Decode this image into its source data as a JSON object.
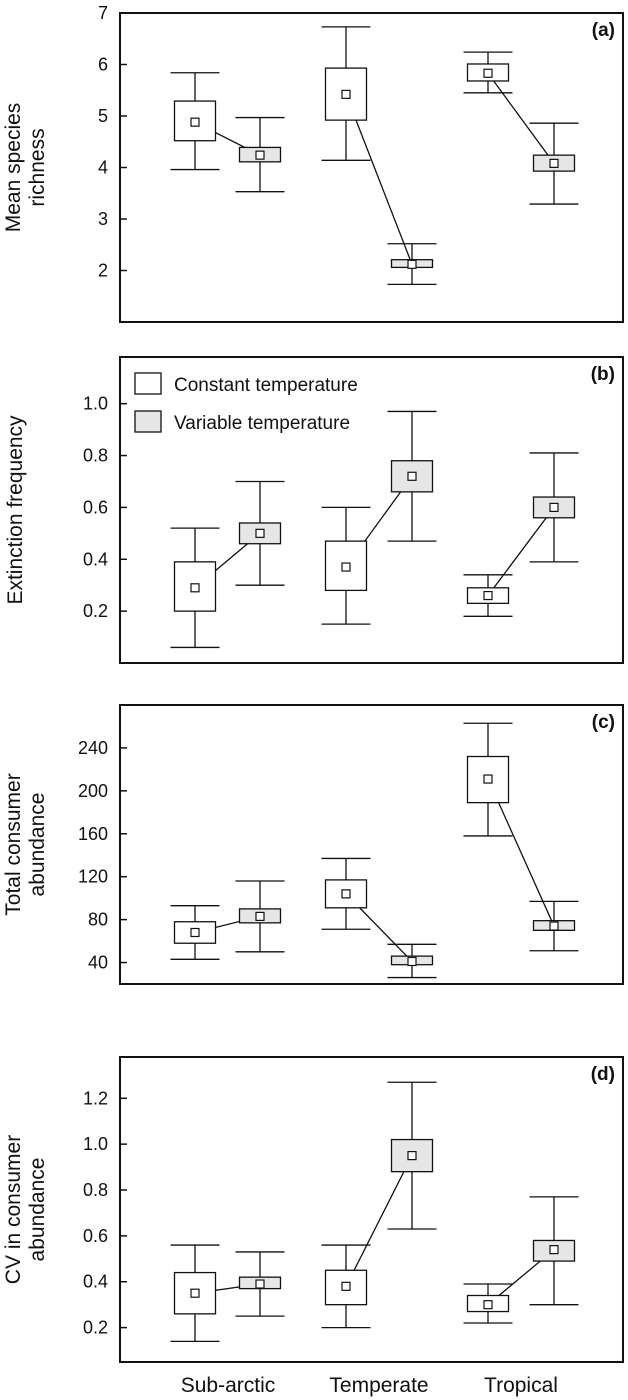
{
  "colors": {
    "constant_fill": "#ffffff",
    "variable_fill": "#e6e6e6",
    "stroke": "#111111"
  },
  "legend": {
    "constant": "Constant temperature",
    "variable": "Variable temperature"
  },
  "categories": [
    "Sub-arctic",
    "Temperate",
    "Tropical"
  ],
  "chart_data": [
    {
      "panel": "(a)",
      "type": "box",
      "ylabel": [
        "Mean species",
        "richness"
      ],
      "ylim": [
        1,
        7
      ],
      "yticks": [
        2,
        3,
        4,
        5,
        6,
        7
      ],
      "tick_decimals": 0,
      "categories": [
        "Sub-arctic",
        "Temperate",
        "Tropical"
      ],
      "series": [
        {
          "name": "Constant temperature",
          "mean": [
            4.88,
            5.42,
            5.83
          ],
          "box_low": [
            4.52,
            4.92,
            5.68
          ],
          "box_high": [
            5.29,
            5.93,
            6.01
          ],
          "whisker_low": [
            3.96,
            4.14,
            5.45
          ],
          "whisker_high": [
            5.84,
            6.73,
            6.24
          ]
        },
        {
          "name": "Variable temperature",
          "mean": [
            4.24,
            2.12,
            4.08
          ],
          "box_low": [
            4.11,
            2.06,
            3.93
          ],
          "box_high": [
            4.39,
            2.21,
            4.24
          ],
          "whisker_low": [
            3.53,
            1.73,
            3.29
          ],
          "whisker_high": [
            4.97,
            2.52,
            4.86
          ]
        }
      ]
    },
    {
      "panel": "(b)",
      "type": "box",
      "ylabel": [
        "Extinction frequency"
      ],
      "ylim": [
        0.0,
        1.18
      ],
      "yticks": [
        0.2,
        0.4,
        0.6,
        0.8,
        1.0
      ],
      "tick_decimals": 1,
      "categories": [
        "Sub-arctic",
        "Temperate",
        "Tropical"
      ],
      "series": [
        {
          "name": "Constant temperature",
          "mean": [
            0.29,
            0.37,
            0.26
          ],
          "box_low": [
            0.2,
            0.28,
            0.23
          ],
          "box_high": [
            0.39,
            0.47,
            0.29
          ],
          "whisker_low": [
            0.06,
            0.15,
            0.18
          ],
          "whisker_high": [
            0.52,
            0.6,
            0.34
          ]
        },
        {
          "name": "Variable temperature",
          "mean": [
            0.5,
            0.72,
            0.6
          ],
          "box_low": [
            0.46,
            0.66,
            0.56
          ],
          "box_high": [
            0.54,
            0.78,
            0.64
          ],
          "whisker_low": [
            0.3,
            0.47,
            0.39
          ],
          "whisker_high": [
            0.7,
            0.97,
            0.81
          ]
        }
      ]
    },
    {
      "panel": "(c)",
      "type": "box",
      "ylabel": [
        "Total consumer",
        "abundance"
      ],
      "ylim": [
        20,
        280
      ],
      "yticks": [
        40,
        80,
        120,
        160,
        200,
        240
      ],
      "tick_decimals": 0,
      "categories": [
        "Sub-arctic",
        "Temperate",
        "Tropical"
      ],
      "series": [
        {
          "name": "Constant temperature",
          "mean": [
            68,
            104,
            211
          ],
          "box_low": [
            58,
            91,
            189
          ],
          "box_high": [
            78,
            117,
            232
          ],
          "whisker_low": [
            43,
            71,
            158
          ],
          "whisker_high": [
            93,
            137,
            263
          ]
        },
        {
          "name": "Variable temperature",
          "mean": [
            83,
            41,
            74
          ],
          "box_low": [
            77,
            38,
            70
          ],
          "box_high": [
            90,
            46,
            79
          ],
          "whisker_low": [
            50,
            26,
            51
          ],
          "whisker_high": [
            116,
            57,
            97
          ]
        }
      ]
    },
    {
      "panel": "(d)",
      "type": "box",
      "ylabel": [
        "CV in consumer",
        "abundance"
      ],
      "ylim": [
        0.05,
        1.38
      ],
      "yticks": [
        0.2,
        0.4,
        0.6,
        0.8,
        1.0,
        1.2
      ],
      "tick_decimals": 1,
      "categories": [
        "Sub-arctic",
        "Temperate",
        "Tropical"
      ],
      "series": [
        {
          "name": "Constant temperature",
          "mean": [
            0.35,
            0.38,
            0.3
          ],
          "box_low": [
            0.26,
            0.3,
            0.27
          ],
          "box_high": [
            0.44,
            0.45,
            0.34
          ],
          "whisker_low": [
            0.14,
            0.2,
            0.22
          ],
          "whisker_high": [
            0.56,
            0.56,
            0.39
          ]
        },
        {
          "name": "Variable temperature",
          "mean": [
            0.39,
            0.95,
            0.54
          ],
          "box_low": [
            0.37,
            0.88,
            0.49
          ],
          "box_high": [
            0.42,
            1.02,
            0.58
          ],
          "whisker_low": [
            0.25,
            0.63,
            0.3
          ],
          "whisker_high": [
            0.53,
            1.27,
            0.77
          ]
        }
      ]
    }
  ]
}
